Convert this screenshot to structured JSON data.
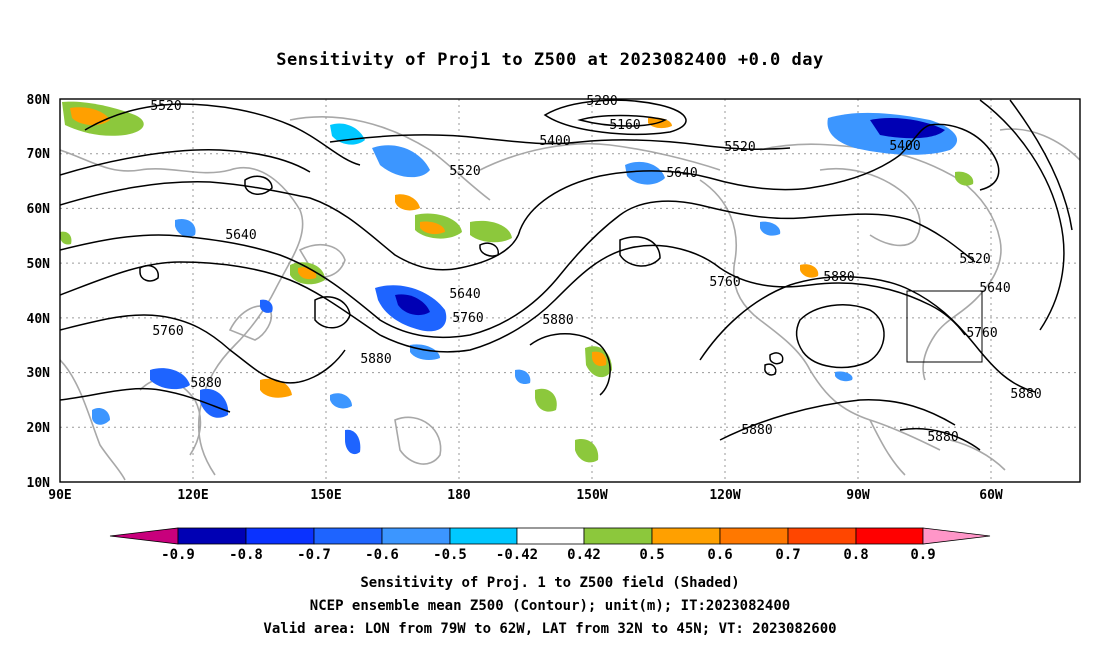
{
  "title": "Sensitivity of Proj1 to Z500 at 2023082400 +0.0 day",
  "lat_labels": [
    "80N",
    "70N",
    "60N",
    "50N",
    "40N",
    "30N",
    "20N",
    "10N"
  ],
  "lon_labels": [
    "90E",
    "120E",
    "150E",
    "180",
    "150W",
    "120W",
    "90W",
    "60W"
  ],
  "contour_labels": [
    "5520",
    "5280",
    "5160",
    "5400",
    "5520",
    "5640",
    "5520",
    "5400",
    "5640",
    "5640",
    "5760",
    "5880",
    "5760",
    "5520",
    "5640",
    "5760",
    "5880",
    "5760",
    "5880",
    "5880",
    "5880",
    "5880",
    "5880"
  ],
  "colorbar": {
    "colors": [
      "#c8007c",
      "#0000b4",
      "#0a32ff",
      "#1e64ff",
      "#3c96ff",
      "#00c8ff",
      "#ffffff",
      "#8cc83c",
      "#ffa000",
      "#ff7800",
      "#ff4600",
      "#ff0000",
      "#ff96c8"
    ],
    "labels": [
      "-0.9",
      "-0.8",
      "-0.7",
      "-0.6",
      "-0.5",
      "-0.42",
      "0.42",
      "0.5",
      "0.6",
      "0.7",
      "0.8",
      "0.9"
    ]
  },
  "footer": {
    "line1": "Sensitivity of Proj. 1 to Z500 field (Shaded)",
    "line2": "NCEP ensemble mean Z500 (Contour); unit(m); IT:2023082400",
    "line3": "Valid area: LON from 79W to 62W, LAT from 32N to 45N; VT: 2023082600"
  }
}
